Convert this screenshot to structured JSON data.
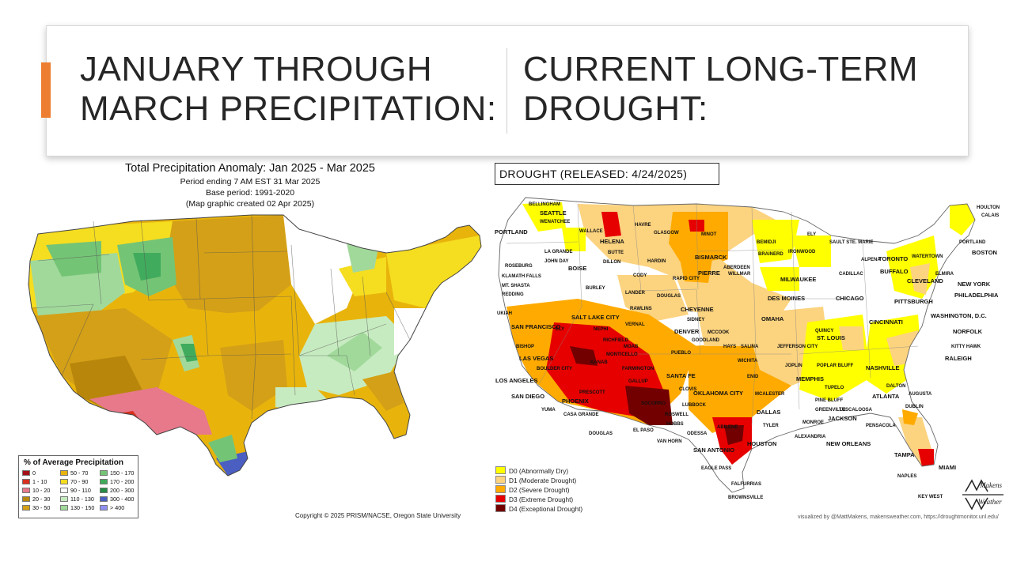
{
  "slide": {
    "left_heading": "JANUARY THROUGH\nMARCH PRECIPITATION:",
    "right_heading": "CURRENT LONG-TERM\nDROUGHT:",
    "accent_color": "#ed7d31"
  },
  "precip_map": {
    "title": "Total Precipitation Anomaly: Jan 2025 - Mar 2025",
    "subtitle_1": "Period ending 7 AM EST 31 Mar 2025",
    "subtitle_2": "Base period: 1991-2020",
    "subtitle_3": "(Map graphic created 02 Apr 2025)",
    "legend_title": "% of Average Precipitation",
    "legend": [
      {
        "label": "0",
        "color": "#a50f15"
      },
      {
        "label": "1 - 10",
        "color": "#d7301f"
      },
      {
        "label": "10 - 20",
        "color": "#e7798b"
      },
      {
        "label": "20 - 30",
        "color": "#b8860b"
      },
      {
        "label": "30 - 50",
        "color": "#d4a017"
      },
      {
        "label": "50 - 70",
        "color": "#e8b40c"
      },
      {
        "label": "70 - 90",
        "color": "#f5dd20"
      },
      {
        "label": "90 - 110",
        "color": "#ffffff"
      },
      {
        "label": "110 - 130",
        "color": "#c7ebc0"
      },
      {
        "label": "130 - 150",
        "color": "#a1d99b"
      },
      {
        "label": "150 - 170",
        "color": "#74c476"
      },
      {
        "label": "170 - 200",
        "color": "#41ab5d"
      },
      {
        "label": "200 - 300",
        "color": "#238b45"
      },
      {
        "label": "300 - 400",
        "color": "#4a5fc1"
      },
      {
        "label": "> 400",
        "color": "#8f8ff0"
      }
    ],
    "copyright": "Copyright © 2025 PRISM/NACSE, Oregon State University"
  },
  "drought_map": {
    "title": "DROUGHT (RELEASED: 4/24/2025)",
    "legend": [
      {
        "label": "D0 (Abnormally Dry)",
        "color": "#ffff00"
      },
      {
        "label": "D1 (Moderate Drought)",
        "color": "#fcd37f"
      },
      {
        "label": "D2 (Severe Drought)",
        "color": "#ffaa00"
      },
      {
        "label": "D3 (Extreme Drought)",
        "color": "#e60000"
      },
      {
        "label": "D4 (Exceptional Drought)",
        "color": "#730000"
      }
    ],
    "credit": "visualized by @MattMakens, makensweather.com, https://droughtmonitor.unl.edu/",
    "brand_line_1": "Makens",
    "brand_line_2": "Weather",
    "cities": [
      {
        "name": "BELLINGHAM",
        "size": "s"
      },
      {
        "name": "SEATTLE",
        "size": "l"
      },
      {
        "name": "WENATCHEE",
        "size": "s"
      },
      {
        "name": "PORTLAND",
        "size": "l"
      },
      {
        "name": "WALLACE",
        "size": "s"
      },
      {
        "name": "HAVRE",
        "size": "s"
      },
      {
        "name": "GLASGOW",
        "size": "s"
      },
      {
        "name": "MINOT",
        "size": "s"
      },
      {
        "name": "HELENA",
        "size": "l"
      },
      {
        "name": "BUTTE",
        "size": "s"
      },
      {
        "name": "DILLON",
        "size": "s"
      },
      {
        "name": "BISMARCK",
        "size": "l"
      },
      {
        "name": "ELY",
        "size": "s"
      },
      {
        "name": "BEMIDJI",
        "size": "s"
      },
      {
        "name": "BRAINERD",
        "size": "s"
      },
      {
        "name": "SAULT STE. MARIE",
        "size": "s"
      },
      {
        "name": "IRONWOOD",
        "size": "s"
      },
      {
        "name": "HOULTON",
        "size": "s"
      },
      {
        "name": "CALAIS",
        "size": "s"
      },
      {
        "name": "PORTLAND",
        "size": "s"
      },
      {
        "name": "BOSTON",
        "size": "l"
      },
      {
        "name": "LA GRANDE",
        "size": "s"
      },
      {
        "name": "JOHN DAY",
        "size": "s"
      },
      {
        "name": "BOISE",
        "size": "l"
      },
      {
        "name": "ROSEBURG",
        "size": "s"
      },
      {
        "name": "HARDIN",
        "size": "s"
      },
      {
        "name": "CODY",
        "size": "s"
      },
      {
        "name": "PIERRE",
        "size": "l"
      },
      {
        "name": "ABERDEEN",
        "size": "s"
      },
      {
        "name": "WILLMAR",
        "size": "s"
      },
      {
        "name": "ALPENA",
        "size": "s"
      },
      {
        "name": "TORONTO",
        "size": "l"
      },
      {
        "name": "WATERTOWN",
        "size": "s"
      },
      {
        "name": "CADILLAC",
        "size": "s"
      },
      {
        "name": "BUFFALO",
        "size": "l"
      },
      {
        "name": "ELMIRA",
        "size": "s"
      },
      {
        "name": "KLAMATH FALLS",
        "size": "s"
      },
      {
        "name": "MT. SHASTA",
        "size": "s"
      },
      {
        "name": "REDDING",
        "size": "s"
      },
      {
        "name": "BURLEY",
        "size": "s"
      },
      {
        "name": "LANDER",
        "size": "s"
      },
      {
        "name": "RAPID CITY",
        "size": "s"
      },
      {
        "name": "DOUGLAS",
        "size": "s"
      },
      {
        "name": "MILWAUKEE",
        "size": "l"
      },
      {
        "name": "CLEVELAND",
        "size": "l"
      },
      {
        "name": "NEW YORK",
        "size": "l"
      },
      {
        "name": "PHILADELPHIA",
        "size": "l"
      },
      {
        "name": "PITTSBURGH",
        "size": "l"
      },
      {
        "name": "CHICAGO",
        "size": "l"
      },
      {
        "name": "DES MOINES",
        "size": "l"
      },
      {
        "name": "RAWLINS",
        "size": "s"
      },
      {
        "name": "CHEYENNE",
        "size": "l"
      },
      {
        "name": "SIDNEY",
        "size": "s"
      },
      {
        "name": "OMAHA",
        "size": "l"
      },
      {
        "name": "UKIAH",
        "size": "s"
      },
      {
        "name": "SAN FRANCISCO",
        "size": "l"
      },
      {
        "name": "SALT LAKE CITY",
        "size": "l"
      },
      {
        "name": "ELY",
        "size": "s"
      },
      {
        "name": "VERNAL",
        "size": "s"
      },
      {
        "name": "DENVER",
        "size": "l"
      },
      {
        "name": "MCCOOK",
        "size": "s"
      },
      {
        "name": "CINCINNATI",
        "size": "l"
      },
      {
        "name": "WASHINGTON, D.C.",
        "size": "l"
      },
      {
        "name": "NEPHI",
        "size": "s"
      },
      {
        "name": "RICHFIELD",
        "size": "s"
      },
      {
        "name": "GOODLAND",
        "size": "s"
      },
      {
        "name": "QUINCY",
        "size": "s"
      },
      {
        "name": "ST. LOUIS",
        "size": "l"
      },
      {
        "name": "NORFOLK",
        "size": "l"
      },
      {
        "name": "BISHOP",
        "size": "s"
      },
      {
        "name": "MOAB",
        "size": "s"
      },
      {
        "name": "PUEBLO",
        "size": "s"
      },
      {
        "name": "HAYS",
        "size": "s"
      },
      {
        "name": "SALINA",
        "size": "s"
      },
      {
        "name": "JEFFERSON CITY",
        "size": "s"
      },
      {
        "name": "KITTY HAWK",
        "size": "s"
      },
      {
        "name": "LAS VEGAS",
        "size": "l"
      },
      {
        "name": "MONTICELLO",
        "size": "s"
      },
      {
        "name": "WICHITA",
        "size": "s"
      },
      {
        "name": "BOULDER CITY",
        "size": "s"
      },
      {
        "name": "KANAB",
        "size": "s"
      },
      {
        "name": "JOPLIN",
        "size": "s"
      },
      {
        "name": "POPLAR BLUFF",
        "size": "s"
      },
      {
        "name": "NASHVILLE",
        "size": "l"
      },
      {
        "name": "RALEIGH",
        "size": "l"
      },
      {
        "name": "FARMINGTON",
        "size": "s"
      },
      {
        "name": "LOS ANGELES",
        "size": "l"
      },
      {
        "name": "ENID",
        "size": "s"
      },
      {
        "name": "GALLUP",
        "size": "s"
      },
      {
        "name": "SANTA FE",
        "size": "l"
      },
      {
        "name": "MEMPHIS",
        "size": "l"
      },
      {
        "name": "TUPELO",
        "size": "s"
      },
      {
        "name": "DALTON",
        "size": "s"
      },
      {
        "name": "SAN DIEGO",
        "size": "l"
      },
      {
        "name": "PRESCOTT",
        "size": "s"
      },
      {
        "name": "CLOVIS",
        "size": "s"
      },
      {
        "name": "OKLAHOMA CITY",
        "size": "l"
      },
      {
        "name": "MCALESTER",
        "size": "s"
      },
      {
        "name": "ATLANTA",
        "size": "l"
      },
      {
        "name": "AUGUSTA",
        "size": "s"
      },
      {
        "name": "PHOENIX",
        "size": "l"
      },
      {
        "name": "SOCORRO",
        "size": "s"
      },
      {
        "name": "LUBBOCK",
        "size": "s"
      },
      {
        "name": "PINE BLUFF",
        "size": "s"
      },
      {
        "name": "GREENVILLE",
        "size": "s"
      },
      {
        "name": "TUSCALOOSA",
        "size": "s"
      },
      {
        "name": "DUBLIN",
        "size": "s"
      },
      {
        "name": "YUMA",
        "size": "s"
      },
      {
        "name": "CASA GRANDE",
        "size": "s"
      },
      {
        "name": "ROSWELL",
        "size": "s"
      },
      {
        "name": "DALLAS",
        "size": "l"
      },
      {
        "name": "JACKSON",
        "size": "l"
      },
      {
        "name": "HOBBS",
        "size": "s"
      },
      {
        "name": "MONROE",
        "size": "s"
      },
      {
        "name": "DOUGLAS",
        "size": "s"
      },
      {
        "name": "EL PASO",
        "size": "s"
      },
      {
        "name": "ODESSA",
        "size": "s"
      },
      {
        "name": "ABILENE",
        "size": "s"
      },
      {
        "name": "TYLER",
        "size": "s"
      },
      {
        "name": "PENSACOLA",
        "size": "s"
      },
      {
        "name": "VAN HORN",
        "size": "s"
      },
      {
        "name": "ALEXANDRIA",
        "size": "s"
      },
      {
        "name": "NEW ORLEANS",
        "size": "l"
      },
      {
        "name": "SAN ANTONIO",
        "size": "l"
      },
      {
        "name": "HOUSTON",
        "size": "l"
      },
      {
        "name": "TAMPA",
        "size": "l"
      },
      {
        "name": "EAGLE PASS",
        "size": "s"
      },
      {
        "name": "MIAMI",
        "size": "l"
      },
      {
        "name": "FALFURRIAS",
        "size": "s"
      },
      {
        "name": "NAPLES",
        "size": "s"
      },
      {
        "name": "BROWNSVILLE",
        "size": "s"
      },
      {
        "name": "KEY WEST",
        "size": "s"
      }
    ]
  }
}
